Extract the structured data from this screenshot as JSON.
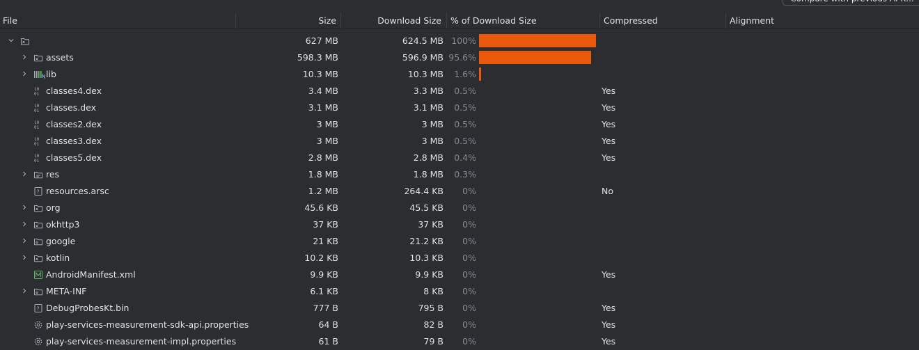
{
  "toolbar": {
    "compare_label": "Compare with previous APK..."
  },
  "columns": {
    "file": "File",
    "size": "Size",
    "download_size": "Download Size",
    "percent": "% of Download Size",
    "compressed": "Compressed",
    "alignment": "Alignment"
  },
  "colors": {
    "bar": "#e8590c",
    "background": "#2b2d30",
    "muted": "#868a91"
  },
  "rows": [
    {
      "name": "",
      "icon": "folder-icon",
      "expandable": true,
      "expanded": true,
      "depth": 0,
      "size": "627 MB",
      "download_size": "624.5 MB",
      "percent": "100%",
      "fraction": 1.0,
      "compressed": "",
      "alignment": ""
    },
    {
      "name": "assets",
      "icon": "folder-icon",
      "expandable": true,
      "expanded": false,
      "depth": 1,
      "size": "598.3 MB",
      "download_size": "596.9 MB",
      "percent": "95.6%",
      "fraction": 0.956,
      "compressed": "",
      "alignment": ""
    },
    {
      "name": "lib",
      "icon": "native-lib-icon",
      "expandable": true,
      "expanded": false,
      "depth": 1,
      "size": "10.3 MB",
      "download_size": "10.3 MB",
      "percent": "1.6%",
      "fraction": 0.016,
      "compressed": "",
      "alignment": ""
    },
    {
      "name": "classes4.dex",
      "icon": "dex-file-icon",
      "expandable": false,
      "depth": 1,
      "size": "3.4 MB",
      "download_size": "3.3 MB",
      "percent": "0.5%",
      "fraction": 0.005,
      "compressed": "Yes",
      "alignment": ""
    },
    {
      "name": "classes.dex",
      "icon": "dex-file-icon",
      "expandable": false,
      "depth": 1,
      "size": "3.1 MB",
      "download_size": "3.1 MB",
      "percent": "0.5%",
      "fraction": 0.005,
      "compressed": "Yes",
      "alignment": ""
    },
    {
      "name": "classes2.dex",
      "icon": "dex-file-icon",
      "expandable": false,
      "depth": 1,
      "size": "3 MB",
      "download_size": "3 MB",
      "percent": "0.5%",
      "fraction": 0.005,
      "compressed": "Yes",
      "alignment": ""
    },
    {
      "name": "classes3.dex",
      "icon": "dex-file-icon",
      "expandable": false,
      "depth": 1,
      "size": "3 MB",
      "download_size": "3 MB",
      "percent": "0.5%",
      "fraction": 0.005,
      "compressed": "Yes",
      "alignment": ""
    },
    {
      "name": "classes5.dex",
      "icon": "dex-file-icon",
      "expandable": false,
      "depth": 1,
      "size": "2.8 MB",
      "download_size": "2.8 MB",
      "percent": "0.4%",
      "fraction": 0.004,
      "compressed": "Yes",
      "alignment": ""
    },
    {
      "name": "res",
      "icon": "resource-folder-icon",
      "expandable": true,
      "expanded": false,
      "depth": 1,
      "size": "1.8 MB",
      "download_size": "1.8 MB",
      "percent": "0.3%",
      "fraction": 0.003,
      "compressed": "",
      "alignment": ""
    },
    {
      "name": "resources.arsc",
      "icon": "unknown-file-icon",
      "expandable": false,
      "depth": 1,
      "size": "1.2 MB",
      "download_size": "264.4 KB",
      "percent": "0%",
      "fraction": 0,
      "compressed": "No",
      "alignment": ""
    },
    {
      "name": "org",
      "icon": "folder-icon",
      "expandable": true,
      "expanded": false,
      "depth": 1,
      "size": "45.6 KB",
      "download_size": "45.5 KB",
      "percent": "0%",
      "fraction": 0,
      "compressed": "",
      "alignment": ""
    },
    {
      "name": "okhttp3",
      "icon": "folder-icon",
      "expandable": true,
      "expanded": false,
      "depth": 1,
      "size": "37 KB",
      "download_size": "37 KB",
      "percent": "0%",
      "fraction": 0,
      "compressed": "",
      "alignment": ""
    },
    {
      "name": "google",
      "icon": "folder-icon",
      "expandable": true,
      "expanded": false,
      "depth": 1,
      "size": "21 KB",
      "download_size": "21.2 KB",
      "percent": "0%",
      "fraction": 0,
      "compressed": "",
      "alignment": ""
    },
    {
      "name": "kotlin",
      "icon": "folder-icon",
      "expandable": true,
      "expanded": false,
      "depth": 1,
      "size": "10.2 KB",
      "download_size": "10.3 KB",
      "percent": "0%",
      "fraction": 0,
      "compressed": "",
      "alignment": ""
    },
    {
      "name": "AndroidManifest.xml",
      "icon": "manifest-icon",
      "expandable": false,
      "depth": 1,
      "size": "9.9 KB",
      "download_size": "9.9 KB",
      "percent": "0%",
      "fraction": 0,
      "compressed": "Yes",
      "alignment": ""
    },
    {
      "name": "META-INF",
      "icon": "folder-icon",
      "expandable": true,
      "expanded": false,
      "depth": 1,
      "size": "6.1 KB",
      "download_size": "8 KB",
      "percent": "0%",
      "fraction": 0,
      "compressed": "",
      "alignment": ""
    },
    {
      "name": "DebugProbesKt.bin",
      "icon": "unknown-file-icon",
      "expandable": false,
      "depth": 1,
      "size": "777 B",
      "download_size": "795 B",
      "percent": "0%",
      "fraction": 0,
      "compressed": "Yes",
      "alignment": ""
    },
    {
      "name": "play-services-measurement-sdk-api.properties",
      "icon": "properties-gear-icon",
      "expandable": false,
      "depth": 1,
      "size": "64 B",
      "download_size": "82 B",
      "percent": "0%",
      "fraction": 0,
      "compressed": "Yes",
      "alignment": ""
    },
    {
      "name": "play-services-measurement-impl.properties",
      "icon": "properties-gear-icon",
      "expandable": false,
      "depth": 1,
      "size": "61 B",
      "download_size": "79 B",
      "percent": "0%",
      "fraction": 0,
      "compressed": "Yes",
      "alignment": ""
    }
  ]
}
